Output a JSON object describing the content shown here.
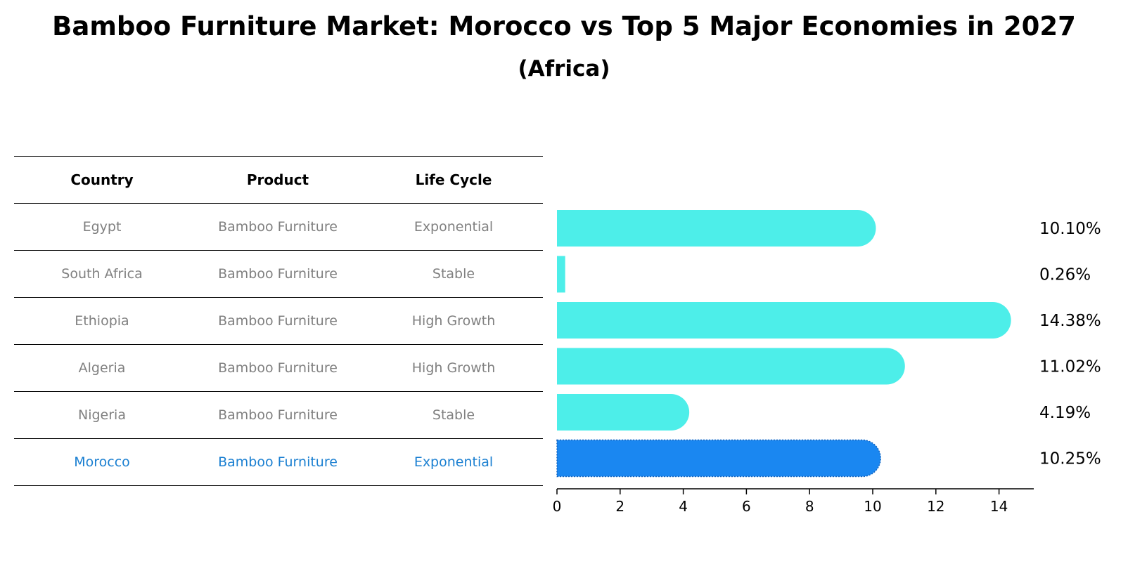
{
  "header": {
    "title": "Bamboo Furniture Market: Morocco vs Top 5 Major Economies in 2027",
    "subtitle": "(Africa)"
  },
  "table": {
    "columns": [
      "Country",
      "Product",
      "Life Cycle"
    ],
    "rows": [
      {
        "country": "Egypt",
        "product": "Bamboo Furniture",
        "life_cycle": "Exponential"
      },
      {
        "country": "South Africa",
        "product": "Bamboo Furniture",
        "life_cycle": "Stable"
      },
      {
        "country": "Ethiopia",
        "product": "Bamboo Furniture",
        "life_cycle": "High Growth"
      },
      {
        "country": "Algeria",
        "product": "Bamboo Furniture",
        "life_cycle": "High Growth"
      },
      {
        "country": "Nigeria",
        "product": "Bamboo Furniture",
        "life_cycle": "Stable"
      },
      {
        "country": "Morocco",
        "product": "Bamboo Furniture",
        "life_cycle": "Exponential"
      }
    ]
  },
  "colors": {
    "bar": "#4deee9",
    "highlight_bar": "#1a87f1",
    "highlight_text": "#1a7fd1",
    "muted_text": "#808080"
  },
  "chart_data": {
    "type": "bar",
    "orientation": "horizontal",
    "title": "Bamboo Furniture Market: Morocco vs Top 5 Major Economies in 2027",
    "subtitle": "(Africa)",
    "categories": [
      "Egypt",
      "South Africa",
      "Ethiopia",
      "Algeria",
      "Nigeria",
      "Morocco"
    ],
    "values": [
      10.1,
      0.26,
      14.38,
      11.02,
      4.19,
      10.25
    ],
    "value_labels": [
      "10.10%",
      "0.26%",
      "14.38%",
      "11.02%",
      "4.19%",
      "10.25%"
    ],
    "highlight": "Morocco",
    "xlim": [
      0,
      15
    ],
    "xticks": [
      0,
      2,
      4,
      6,
      8,
      10,
      12,
      14
    ],
    "xlabel": "",
    "ylabel": "",
    "grid": false
  }
}
